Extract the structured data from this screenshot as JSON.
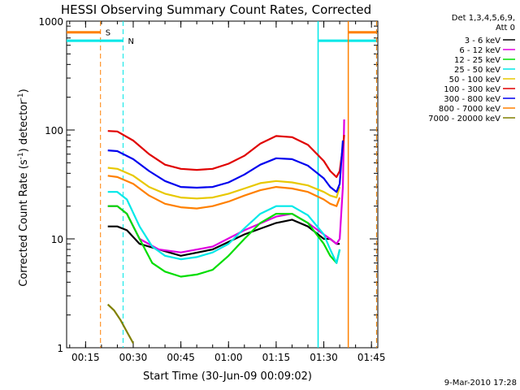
{
  "chart_data": {
    "type": "line",
    "title": "HESSI Observing Summary Count Rates, Corrected",
    "xlabel": "Start Time (30-Jun-09 00:09:02)",
    "ylabel": "Corrected Count Rate (s",
    "ylabel_exponent": "-1",
    "ylabel_suffix": ") detector",
    "ylabel_exponent2": "-1",
    "ylabel_close": ")",
    "y_scale": "log",
    "ylim": [
      1,
      1000
    ],
    "xlim_minutes": [
      9.03,
      107
    ],
    "x_ticks": [
      {
        "m": 15,
        "label": "00:15"
      },
      {
        "m": 30,
        "label": "00:30"
      },
      {
        "m": 45,
        "label": "00:45"
      },
      {
        "m": 60,
        "label": "01:00"
      },
      {
        "m": 75,
        "label": "01:15"
      },
      {
        "m": 90,
        "label": "01:30"
      },
      {
        "m": 105,
        "label": "01:45"
      }
    ],
    "y_ticks": [
      {
        "v": 1,
        "label": "1"
      },
      {
        "v": 10,
        "label": "10"
      },
      {
        "v": 100,
        "label": "100"
      },
      {
        "v": 1000,
        "label": "1000"
      }
    ],
    "legend_header": [
      "Det 1,3,4,5,6,9,",
      "Att 0"
    ],
    "legend_placement": "right",
    "series": [
      {
        "name": "3 - 6 keV",
        "color": "#000000",
        "points": [
          [
            22,
            13
          ],
          [
            25,
            13
          ],
          [
            28,
            12
          ],
          [
            32,
            9
          ],
          [
            38,
            8
          ],
          [
            45,
            7
          ],
          [
            55,
            8
          ],
          [
            65,
            11
          ],
          [
            75,
            14
          ],
          [
            80,
            15
          ],
          [
            85,
            13
          ],
          [
            90,
            10
          ],
          [
            92,
            10
          ],
          [
            94,
            9
          ],
          [
            95,
            9
          ]
        ]
      },
      {
        "name": "6 - 12 keV",
        "color": "#e000e0",
        "points": [
          [
            22,
            20
          ],
          [
            25,
            20
          ],
          [
            28,
            17
          ],
          [
            32,
            10
          ],
          [
            38,
            8
          ],
          [
            45,
            7.5
          ],
          [
            55,
            8.5
          ],
          [
            65,
            12
          ],
          [
            75,
            16
          ],
          [
            80,
            17
          ],
          [
            85,
            14
          ],
          [
            90,
            11
          ],
          [
            92,
            10
          ],
          [
            94,
            9
          ],
          [
            95,
            10
          ],
          [
            96,
            30
          ],
          [
            96.4,
            125
          ]
        ]
      },
      {
        "name": "12 - 25 keV",
        "color": "#00dd00",
        "points": [
          [
            22,
            20
          ],
          [
            25,
            20
          ],
          [
            28,
            17
          ],
          [
            32,
            10
          ],
          [
            36,
            6
          ],
          [
            40,
            5
          ],
          [
            45,
            4.5
          ],
          [
            50,
            4.7
          ],
          [
            55,
            5.2
          ],
          [
            60,
            7
          ],
          [
            65,
            10
          ],
          [
            70,
            14
          ],
          [
            75,
            17
          ],
          [
            80,
            17
          ],
          [
            85,
            14
          ],
          [
            90,
            9
          ],
          [
            92,
            7
          ],
          [
            94,
            6
          ],
          [
            95,
            8
          ]
        ]
      },
      {
        "name": "25 - 50 keV",
        "color": "#00e8e8",
        "points": [
          [
            22,
            27
          ],
          [
            25,
            27
          ],
          [
            28,
            23
          ],
          [
            32,
            13
          ],
          [
            36,
            8.5
          ],
          [
            40,
            7
          ],
          [
            45,
            6.5
          ],
          [
            50,
            6.8
          ],
          [
            55,
            7.5
          ],
          [
            60,
            9
          ],
          [
            65,
            12.5
          ],
          [
            70,
            17
          ],
          [
            75,
            20
          ],
          [
            80,
            20
          ],
          [
            85,
            16.5
          ],
          [
            90,
            11
          ],
          [
            92,
            8
          ],
          [
            94,
            6
          ],
          [
            95,
            8
          ]
        ]
      },
      {
        "name": "50 - 100 keV",
        "color": "#e8c800",
        "points": [
          [
            22,
            45
          ],
          [
            25,
            44
          ],
          [
            30,
            38
          ],
          [
            35,
            30
          ],
          [
            40,
            26
          ],
          [
            45,
            24
          ],
          [
            50,
            23.5
          ],
          [
            55,
            24
          ],
          [
            60,
            26
          ],
          [
            65,
            29
          ],
          [
            70,
            32.5
          ],
          [
            75,
            34
          ],
          [
            80,
            33
          ],
          [
            85,
            31
          ],
          [
            90,
            27
          ],
          [
            92,
            25
          ],
          [
            94,
            24
          ],
          [
            95,
            30
          ]
        ]
      },
      {
        "name": "100 - 300 keV",
        "color": "#e00000",
        "points": [
          [
            22,
            98
          ],
          [
            25,
            97
          ],
          [
            30,
            80
          ],
          [
            35,
            60
          ],
          [
            40,
            48
          ],
          [
            45,
            44
          ],
          [
            50,
            43
          ],
          [
            55,
            44
          ],
          [
            60,
            49
          ],
          [
            65,
            58
          ],
          [
            70,
            75
          ],
          [
            75,
            88
          ],
          [
            80,
            86
          ],
          [
            85,
            73
          ],
          [
            90,
            52
          ],
          [
            92,
            42
          ],
          [
            94,
            37
          ],
          [
            95,
            42
          ],
          [
            96,
            70
          ],
          [
            96.4,
            90
          ]
        ]
      },
      {
        "name": "300 - 800 keV",
        "color": "#0000ee",
        "points": [
          [
            22,
            65
          ],
          [
            25,
            64
          ],
          [
            30,
            54
          ],
          [
            35,
            42
          ],
          [
            40,
            34
          ],
          [
            45,
            30
          ],
          [
            50,
            29.5
          ],
          [
            55,
            30
          ],
          [
            60,
            33
          ],
          [
            65,
            39
          ],
          [
            70,
            48
          ],
          [
            75,
            55
          ],
          [
            80,
            54
          ],
          [
            85,
            47
          ],
          [
            90,
            36
          ],
          [
            92,
            30
          ],
          [
            94,
            27
          ],
          [
            95,
            32
          ],
          [
            96,
            80
          ]
        ]
      },
      {
        "name": "800 - 7000 keV",
        "color": "#ff8000",
        "points": [
          [
            22,
            38
          ],
          [
            25,
            37
          ],
          [
            30,
            32
          ],
          [
            35,
            25
          ],
          [
            40,
            21
          ],
          [
            45,
            19.5
          ],
          [
            50,
            19
          ],
          [
            55,
            20
          ],
          [
            60,
            22
          ],
          [
            65,
            25
          ],
          [
            70,
            28
          ],
          [
            75,
            30
          ],
          [
            80,
            29
          ],
          [
            85,
            27
          ],
          [
            90,
            23
          ],
          [
            92,
            21
          ],
          [
            94,
            20
          ],
          [
            95,
            24
          ]
        ]
      },
      {
        "name": "7000 - 20000 keV",
        "color": "#808000",
        "points": [
          [
            22,
            2.5
          ],
          [
            24,
            2.2
          ],
          [
            26,
            1.8
          ],
          [
            28,
            1.4
          ],
          [
            30,
            1.1
          ]
        ]
      }
    ],
    "markers": [
      {
        "label": "S",
        "color": "#ff8000",
        "x_minutes": 19.7,
        "bar_x_start": 9.03,
        "bar_x_end": 19.7,
        "bar_value": 790
      },
      {
        "label": "N",
        "color": "#00e8e8",
        "x_minutes": 26.8,
        "bar_x_start": 9.03,
        "bar_x_end": 26.8,
        "bar_value": 660
      }
    ],
    "right_markers": [
      {
        "color": "#00e8e8",
        "x_start": 88.2,
        "x_end": 106.6,
        "bar_value": 660
      },
      {
        "color": "#ff8000",
        "x_start": 97.7,
        "x_end": 106.6,
        "bar_value": 790
      }
    ]
  },
  "footer_timestamp": "9-Mar-2010 17:28"
}
